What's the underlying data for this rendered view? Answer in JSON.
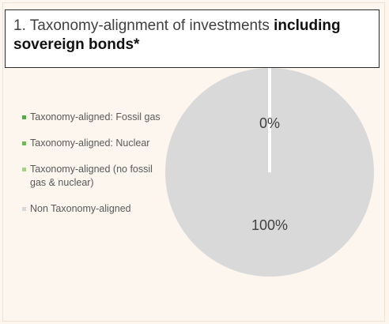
{
  "title": {
    "prefix": "1. Taxonomy-alignment of investments ",
    "emphasis": "including sovereign bonds*"
  },
  "chart_data": {
    "type": "pie",
    "legend_position": "left",
    "series": [
      {
        "name": "Taxonomy-aligned: Fossil gas",
        "value": 0,
        "color": "#5aa747"
      },
      {
        "name": "Taxonomy-aligned: Nuclear",
        "value": 0,
        "color": "#74b65a"
      },
      {
        "name": "Taxonomy-aligned (no fossil gas & nuclear)",
        "value": 0,
        "color": "#a7d08c"
      },
      {
        "name": "Non Taxonomy-aligned",
        "value": 100,
        "color": "#d9d9d9"
      }
    ],
    "data_labels": [
      "0%",
      "100%"
    ]
  },
  "colors": {
    "background": "#fdf6ef",
    "divider": "#ffffff"
  }
}
